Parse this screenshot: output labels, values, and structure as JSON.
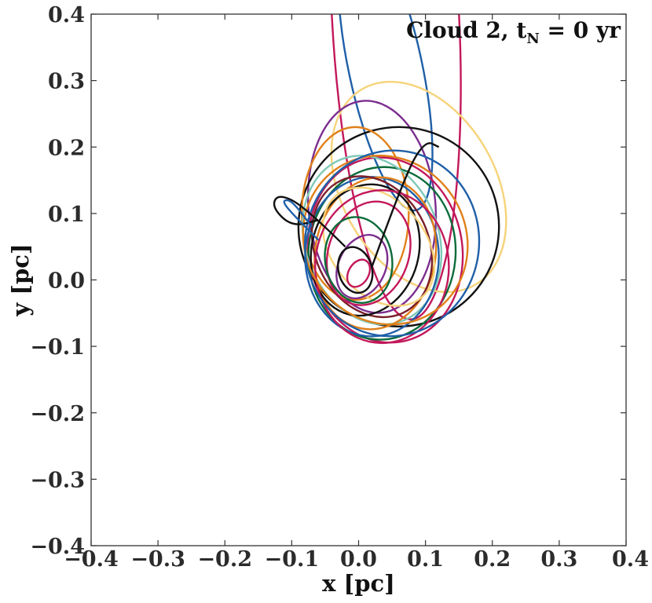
{
  "chart_data": {
    "type": "line",
    "title": {
      "text": "Cloud 2, t",
      "subscript": "N",
      "suffix": " =  0 yr"
    },
    "xlabel": "x [pc]",
    "ylabel": "y [pc]",
    "xlim": [
      -0.4,
      0.4
    ],
    "ylim": [
      -0.4,
      0.4
    ],
    "xticks": [
      -0.4,
      -0.3,
      -0.2,
      -0.1,
      0.0,
      0.1,
      0.2,
      0.3,
      0.4
    ],
    "yticks": [
      -0.4,
      -0.3,
      -0.2,
      -0.1,
      0.0,
      0.1,
      0.2,
      0.3,
      0.4
    ],
    "xtick_labels": [
      "−0.4",
      "−0.3",
      "−0.2",
      "−0.1",
      "0.0",
      "0.1",
      "0.2",
      "0.3",
      "0.4"
    ],
    "ytick_labels": [
      "−0.4",
      "−0.3",
      "−0.2",
      "−0.1",
      "0.0",
      "0.1",
      "0.2",
      "0.3",
      "0.4"
    ],
    "grid": false,
    "legend": "none",
    "tick_direction": "in",
    "palette": [
      "#c2185b",
      "#1f5fa8",
      "#0b6b3a",
      "#e0801a",
      "#111111",
      "#7b2d8e",
      "#f6d37a",
      "#7fc8b8",
      "#7a1f2a",
      "#3f6fb0"
    ],
    "series": [
      {
        "kind": "ellipse",
        "cx": 0.055,
        "cy": 0.4,
        "rx": 0.095,
        "ry": 0.46,
        "rot": -3,
        "color": "#c2185b"
      },
      {
        "kind": "ellipse",
        "cx": 0.04,
        "cy": 0.32,
        "rx": 0.055,
        "ry": 0.22,
        "rot": -12,
        "color": "#1f5fa8"
      },
      {
        "kind": "ellipse",
        "cx": 0.09,
        "cy": 0.14,
        "rx": 0.115,
        "ry": 0.17,
        "rot": -30,
        "color": "#f6d37a"
      },
      {
        "kind": "ellipse",
        "cx": 0.02,
        "cy": 0.11,
        "rx": 0.095,
        "ry": 0.16,
        "rot": -5,
        "color": "#7b2d8e"
      },
      {
        "kind": "ellipse",
        "cx": 0.06,
        "cy": 0.08,
        "rx": 0.15,
        "ry": 0.15,
        "rot": -15,
        "color": "#111111"
      },
      {
        "kind": "ellipse",
        "cx": -0.005,
        "cy": 0.1,
        "rx": 0.08,
        "ry": 0.13,
        "rot": 0,
        "color": "#e0801a"
      },
      {
        "kind": "ellipse",
        "cx": 0.04,
        "cy": 0.045,
        "rx": 0.115,
        "ry": 0.14,
        "rot": -10,
        "color": "#c2185b"
      },
      {
        "kind": "ellipse",
        "cx": 0.035,
        "cy": 0.04,
        "rx": 0.11,
        "ry": 0.13,
        "rot": 5,
        "color": "#0b6b3a"
      },
      {
        "kind": "ellipse",
        "cx": 0.02,
        "cy": 0.06,
        "rx": 0.1,
        "ry": 0.13,
        "rot": -20,
        "color": "#7fc8b8"
      },
      {
        "kind": "ellipse",
        "cx": 0.02,
        "cy": 0.035,
        "rx": 0.1,
        "ry": 0.12,
        "rot": 0,
        "color": "#1f5fa8"
      },
      {
        "kind": "ellipse",
        "cx": 0.025,
        "cy": 0.04,
        "rx": 0.09,
        "ry": 0.115,
        "rot": 10,
        "color": "#e0801a"
      },
      {
        "kind": "ellipse",
        "cx": 0.02,
        "cy": 0.05,
        "rx": 0.085,
        "ry": 0.11,
        "rot": -25,
        "color": "#7a1f2a"
      },
      {
        "kind": "ellipse",
        "cx": 0.01,
        "cy": 0.045,
        "rx": 0.08,
        "ry": 0.1,
        "rot": 15,
        "color": "#111111"
      },
      {
        "kind": "ellipse",
        "cx": 0.03,
        "cy": 0.05,
        "rx": 0.07,
        "ry": 0.1,
        "rot": -40,
        "color": "#f6d37a"
      },
      {
        "kind": "ellipse",
        "cx": 0.015,
        "cy": 0.04,
        "rx": 0.06,
        "ry": 0.08,
        "rot": 20,
        "color": "#c2185b"
      },
      {
        "kind": "ellipse",
        "cx": 0.0,
        "cy": 0.03,
        "rx": 0.05,
        "ry": 0.065,
        "rot": -10,
        "color": "#0b6b3a"
      },
      {
        "kind": "ellipse",
        "cx": 0.005,
        "cy": 0.02,
        "rx": 0.035,
        "ry": 0.05,
        "rot": 25,
        "color": "#7b2d8e"
      },
      {
        "kind": "ellipse",
        "cx": -0.005,
        "cy": 0.015,
        "rx": 0.025,
        "ry": 0.035,
        "rot": -15,
        "color": "#111111"
      },
      {
        "kind": "ellipse",
        "cx": 0.0,
        "cy": 0.01,
        "rx": 0.015,
        "ry": 0.022,
        "rot": 30,
        "color": "#c2185b"
      },
      {
        "kind": "ellipse",
        "cx": 0.035,
        "cy": 0.02,
        "rx": 0.1,
        "ry": 0.115,
        "rot": 0,
        "color": "#c2185b"
      },
      {
        "kind": "ellipse",
        "cx": 0.04,
        "cy": 0.06,
        "rx": 0.12,
        "ry": 0.13,
        "rot": -35,
        "color": "#e0801a"
      },
      {
        "kind": "ellipse",
        "cx": 0.05,
        "cy": 0.055,
        "rx": 0.13,
        "ry": 0.14,
        "rot": 10,
        "color": "#1f5fa8"
      },
      {
        "kind": "path",
        "color": "#111111",
        "points": [
          [
            -0.02,
            0.05
          ],
          [
            -0.08,
            0.11
          ],
          [
            -0.12,
            0.13
          ],
          [
            -0.13,
            0.11
          ],
          [
            -0.1,
            0.08
          ],
          [
            -0.06,
            0.09
          ]
        ]
      },
      {
        "kind": "path",
        "color": "#1f5fa8",
        "points": [
          [
            -0.06,
            0.06
          ],
          [
            -0.1,
            0.1
          ],
          [
            -0.115,
            0.12
          ],
          [
            -0.1,
            0.12
          ],
          [
            -0.07,
            0.08
          ]
        ]
      },
      {
        "kind": "path",
        "color": "#111111",
        "points": [
          [
            0.02,
            0.02
          ],
          [
            0.07,
            0.16
          ],
          [
            0.1,
            0.21
          ],
          [
            0.12,
            0.2
          ]
        ]
      }
    ]
  }
}
